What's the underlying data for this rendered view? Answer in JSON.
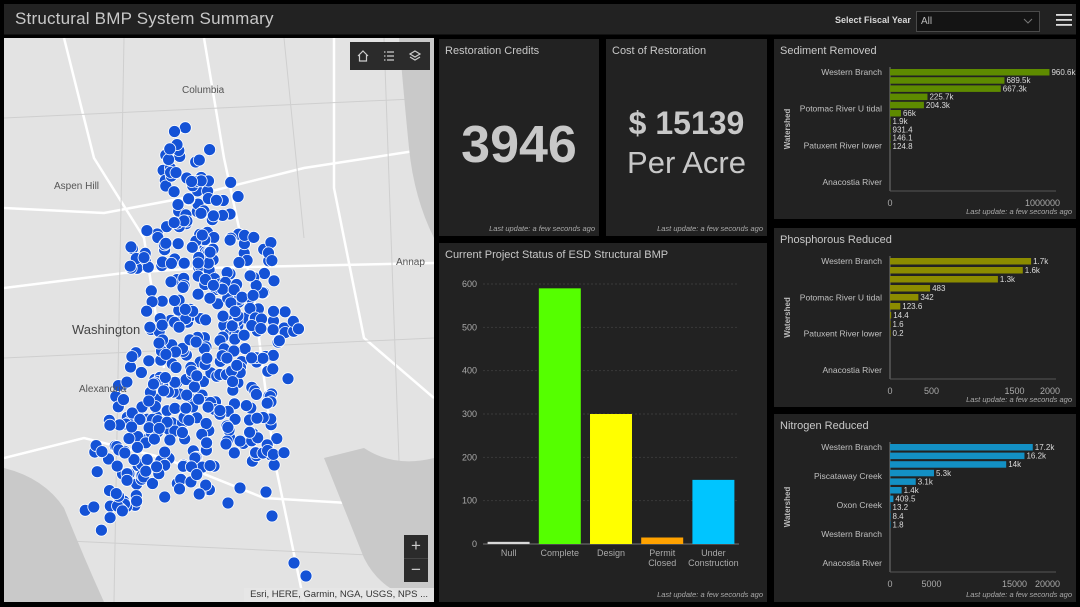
{
  "header": {
    "title": "Structural BMP System Summary",
    "fiscal_year_label": "Select Fiscal Year",
    "fiscal_year_value": "All",
    "menu_icon": "hamburger-menu-icon"
  },
  "map": {
    "places": [
      "Columbia",
      "Aspen Hill",
      "Annap",
      "Washington",
      "Alexandria"
    ],
    "tools": [
      "home-icon",
      "legend-list-icon",
      "layers-icon"
    ],
    "zoom_in": "+",
    "zoom_out": "−",
    "attribution": "Esri, HERE, Garmin, NGA, USGS, NPS ...",
    "marker_color": "#1452d6"
  },
  "restoration_credits": {
    "title": "Restoration Credits",
    "value": "3946",
    "updated": "Last update: a few seconds ago"
  },
  "cost_of_restoration": {
    "title": "Cost of Restoration",
    "value": "$ 15139",
    "unit": "Per Acre",
    "updated": "Last update: a few seconds ago"
  },
  "project_status": {
    "title": "Current Project Status of ESD Structural BMP",
    "updated": "Last update: a few seconds ago",
    "chart_data": {
      "type": "bar",
      "categories": [
        "Null",
        "Complete",
        "Design",
        "Permit Closed",
        "Under Construction"
      ],
      "tick_labels": [
        [
          "Null"
        ],
        [
          "Complete"
        ],
        [
          "Design"
        ],
        [
          "Permit",
          "Closed"
        ],
        [
          "Under",
          "Construction"
        ]
      ],
      "values": [
        5,
        590,
        300,
        15,
        148
      ],
      "colors": [
        "#d8d8d8",
        "#55ff00",
        "#ffff00",
        "#ffa200",
        "#00c5ff"
      ],
      "y_ticks": [
        0,
        100,
        200,
        300,
        400,
        500,
        600
      ],
      "ylim": [
        0,
        600
      ],
      "grid": true
    }
  },
  "sediment": {
    "title": "Sediment Removed",
    "updated": "Last update: a few seconds ago",
    "chart_data": {
      "type": "bar",
      "orientation": "horizontal",
      "ylabel": "Watershed",
      "category_labels": [
        "Western Branch",
        "Potomac River U tidal",
        "Patuxent River lower",
        "Anacostia River"
      ],
      "values": [
        960600,
        689500,
        667300,
        225700,
        204300,
        66000,
        1900,
        931.4,
        146.1,
        124.8
      ],
      "value_labels": [
        "960.6k",
        "689.5k",
        "667.3k",
        "225.7k",
        "204.3k",
        "66k",
        "1.9k",
        "931.4",
        "146.1",
        "124.8"
      ],
      "x_ticks": [
        0,
        1000000
      ],
      "x_tick_labels": [
        "0",
        "1000000"
      ],
      "xlim": [
        0,
        1000000
      ],
      "color": "#5e8b00"
    }
  },
  "phosphorous": {
    "title": "Phosphorous Reduced",
    "updated": "Last update: a few seconds ago",
    "chart_data": {
      "type": "bar",
      "orientation": "horizontal",
      "ylabel": "Watershed",
      "category_labels": [
        "Western Branch",
        "Potomac River U tidal",
        "Patuxent River lower",
        "Anacostia River"
      ],
      "values": [
        1700,
        1600,
        1300,
        483,
        342,
        123.6,
        14.4,
        1.6,
        0.2
      ],
      "value_labels": [
        "1.7k",
        "1.6k",
        "1.3k",
        "483",
        "342",
        "123.6",
        "14.4",
        "1.6",
        "0.2"
      ],
      "x_ticks": [
        0,
        500,
        1500,
        2000
      ],
      "x_tick_labels": [
        "0",
        "500",
        "1500",
        "2000"
      ],
      "xlim": [
        0,
        2000
      ],
      "color": "#8c8c00"
    }
  },
  "nitrogen": {
    "title": "Nitrogen Reduced",
    "updated": "Last update: a few seconds ago",
    "chart_data": {
      "type": "bar",
      "orientation": "horizontal",
      "ylabel": "Watershed",
      "category_labels": [
        "Western Branch",
        "Piscataway Creek",
        "Oxon Creek",
        "Western Branch",
        "Anacostia River"
      ],
      "values": [
        17200,
        16200,
        14000,
        5300,
        3100,
        1400,
        409.5,
        13.2,
        8.4,
        1.8
      ],
      "value_labels": [
        "17.2k",
        "16.2k",
        "14k",
        "5.3k",
        "3.1k",
        "1.4k",
        "409.5",
        "13.2",
        "8.4",
        "1.8"
      ],
      "x_ticks": [
        0,
        5000,
        15000,
        20000
      ],
      "x_tick_labels": [
        "0",
        "5000",
        "15000",
        "20000"
      ],
      "xlim": [
        0,
        20000
      ],
      "color": "#1390c4"
    }
  }
}
